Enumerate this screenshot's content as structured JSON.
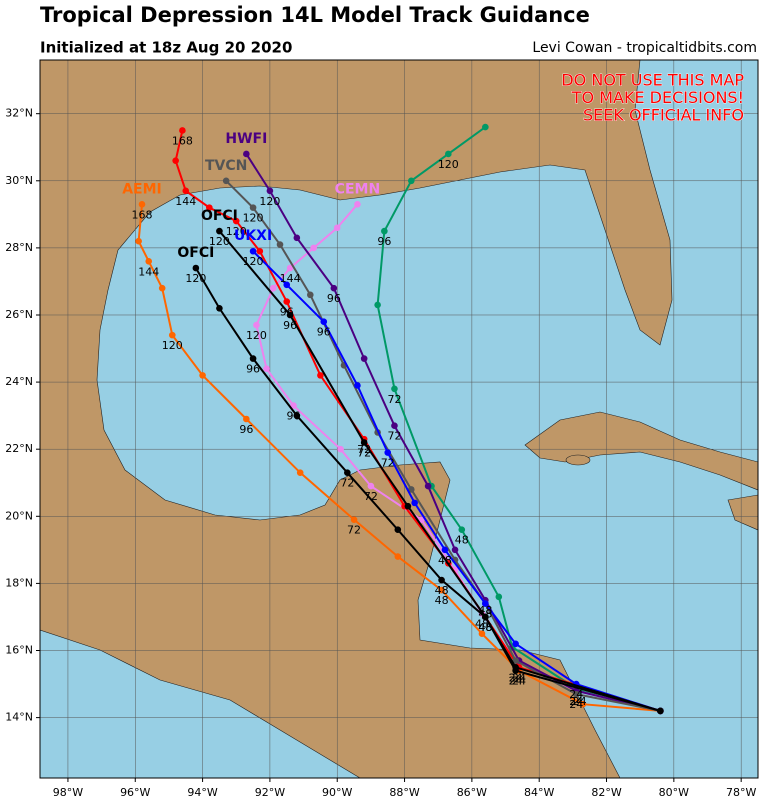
{
  "header": {
    "title": "Tropical Depression 14L Model Track Guidance",
    "subtitle": "Initialized at 18z Aug 20 2020",
    "credit": "Levi Cowan - tropicaltidbits.com"
  },
  "warning": [
    "DO NOT USE THIS MAP",
    "TO MAKE DECISIONS!",
    "SEEK OFFICIAL INFO"
  ],
  "map": {
    "xlim": [
      -98.83,
      -77.5
    ],
    "ylim": [
      12.2,
      33.6
    ],
    "xticks": [
      {
        "value": -98,
        "label": "98°W"
      },
      {
        "value": -96,
        "label": "96°W"
      },
      {
        "value": -94,
        "label": "94°W"
      },
      {
        "value": -92,
        "label": "92°W"
      },
      {
        "value": -90,
        "label": "90°W"
      },
      {
        "value": -88,
        "label": "88°W"
      },
      {
        "value": -86,
        "label": "86°W"
      },
      {
        "value": -84,
        "label": "84°W"
      },
      {
        "value": -82,
        "label": "82°W"
      },
      {
        "value": -80,
        "label": "80°W"
      },
      {
        "value": -78,
        "label": "78°W"
      }
    ],
    "yticks": [
      {
        "value": 14,
        "label": "14°N"
      },
      {
        "value": 16,
        "label": "16°N"
      },
      {
        "value": 18,
        "label": "18°N"
      },
      {
        "value": 20,
        "label": "20°N"
      },
      {
        "value": 22,
        "label": "22°N"
      },
      {
        "value": 24,
        "label": "24°N"
      },
      {
        "value": 26,
        "label": "26°N"
      },
      {
        "value": 28,
        "label": "28°N"
      },
      {
        "value": 30,
        "label": "30°N"
      },
      {
        "value": 32,
        "label": "32°N"
      }
    ],
    "grid": true,
    "tracks": [
      {
        "color": "#009966",
        "lon": [
          -80.4,
          -82.8,
          -84.8,
          -85.2,
          -86.3,
          -87.2,
          -88.3,
          -88.8,
          -88.6,
          -87.8,
          -86.7,
          -85.6
        ],
        "lat": [
          14.2,
          14.8,
          16.1,
          17.6,
          19.6,
          20.9,
          23.8,
          26.3,
          28.5,
          30.0,
          30.8,
          31.6
        ],
        "hour_labels": [
          null,
          "24",
          null,
          null,
          "48",
          null,
          "72",
          null,
          "96",
          null,
          "120",
          null
        ]
      },
      {
        "name": "AEMI",
        "color": "#ff6600",
        "lon": [
          -80.4,
          -82.7,
          -84.6,
          -85.7,
          -86.9,
          -88.2,
          -89.5,
          -91.1,
          -92.7,
          -94.0,
          -94.9,
          -95.2,
          -95.6,
          -95.9,
          -95.8
        ],
        "lat": [
          14.2,
          14.4,
          15.4,
          16.5,
          17.8,
          18.8,
          19.9,
          21.3,
          22.9,
          24.2,
          25.4,
          26.8,
          27.6,
          28.2,
          29.3
        ],
        "hour_labels": [
          null,
          null,
          "24",
          null,
          "48",
          null,
          "72",
          null,
          "96",
          null,
          "120",
          null,
          "144",
          null,
          "168"
        ]
      },
      {
        "name": "CEMN",
        "color": "#ee82ee",
        "lon": [
          -80.4,
          -82.9,
          -84.7,
          -85.7,
          -86.5,
          -87.5,
          -89.0,
          -89.9,
          -91.3,
          -92.1,
          -92.4,
          -91.9,
          -91.4,
          -90.7,
          -90.0,
          -89.4
        ],
        "lat": [
          14.2,
          14.8,
          15.7,
          17.1,
          18.4,
          19.9,
          20.9,
          22.0,
          23.3,
          24.4,
          25.7,
          26.8,
          27.4,
          28.0,
          28.6,
          29.3
        ],
        "hour_labels": [
          null,
          "24",
          null,
          "48",
          null,
          null,
          "72",
          null,
          "96",
          null,
          "120",
          null,
          "144",
          null,
          null,
          null
        ]
      },
      {
        "color": "#ff0000",
        "lon": [
          -80.4,
          -84.6,
          -85.6,
          -86.7,
          -88.0,
          -89.2,
          -90.5,
          -91.5,
          -92.3,
          -93.0,
          -93.8,
          -94.5,
          -94.8,
          -94.6
        ],
        "lat": [
          14.2,
          15.5,
          17.0,
          18.6,
          20.3,
          22.3,
          24.2,
          26.4,
          27.9,
          28.8,
          29.2,
          29.7,
          30.6,
          31.5
        ],
        "hour_labels": [
          null,
          "24",
          "48",
          null,
          null,
          "72",
          null,
          "96",
          null,
          "120",
          null,
          "144",
          null,
          "168"
        ]
      },
      {
        "name": "HWFI",
        "color": "#4b0082",
        "lon": [
          -80.4,
          -82.9,
          -84.6,
          -85.6,
          -86.5,
          -87.3,
          -88.3,
          -89.2,
          -90.1,
          -91.2,
          -92.0,
          -92.7
        ],
        "lat": [
          14.2,
          14.8,
          15.7,
          17.5,
          19.0,
          20.9,
          22.7,
          24.7,
          26.8,
          28.3,
          29.7,
          30.8
        ],
        "hour_labels": [
          null,
          "24",
          null,
          "48",
          null,
          null,
          "72",
          null,
          "96",
          null,
          "120",
          null
        ]
      },
      {
        "name": "TVCN",
        "color": "#555555",
        "lon": [
          -80.4,
          -82.9,
          -84.7,
          -85.6,
          -86.5,
          -87.8,
          -88.8,
          -89.8,
          -90.8,
          -91.7,
          -92.5,
          -93.3
        ],
        "lat": [
          14.2,
          14.7,
          15.7,
          17.4,
          18.7,
          20.8,
          22.5,
          24.5,
          26.6,
          28.1,
          29.2,
          30.0
        ],
        "hour_labels": [
          null,
          "24",
          null,
          "48",
          null,
          null,
          null,
          null,
          null,
          null,
          "120",
          null
        ]
      },
      {
        "name": "UKXI",
        "color": "#0000ff",
        "lon": [
          -80.4,
          -82.9,
          -84.7,
          -85.6,
          -86.8,
          -87.7,
          -88.5,
          -89.4,
          -90.4,
          -91.5,
          -92.5
        ],
        "lat": [
          14.2,
          15.0,
          16.2,
          17.4,
          19.0,
          20.4,
          21.9,
          23.9,
          25.8,
          26.9,
          27.9
        ],
        "hour_labels": [
          null,
          "24",
          null,
          null,
          "48",
          null,
          "72",
          null,
          "96",
          null,
          "120"
        ]
      },
      {
        "name": "OFCI",
        "color": "#000000",
        "lon": [
          -80.4,
          -84.7,
          -85.6,
          -87.9,
          -89.2,
          -91.4,
          -93.5
        ],
        "lat": [
          14.2,
          15.5,
          17.0,
          20.3,
          22.2,
          26.0,
          28.5
        ],
        "hour_labels": [
          null,
          "24",
          "48",
          null,
          "72",
          "96",
          "120"
        ]
      },
      {
        "name": "OFCI",
        "color": "#000000",
        "lon": [
          -80.4,
          -84.7,
          -85.6,
          -86.9,
          -88.2,
          -89.7,
          -91.2,
          -92.5,
          -93.5,
          -94.2
        ],
        "lat": [
          14.2,
          15.4,
          17.0,
          18.1,
          19.6,
          21.3,
          23.0,
          24.7,
          26.2,
          27.4
        ],
        "hour_labels": [
          null,
          "24",
          null,
          "48",
          null,
          "72",
          null,
          "96",
          null,
          "120"
        ]
      }
    ]
  }
}
